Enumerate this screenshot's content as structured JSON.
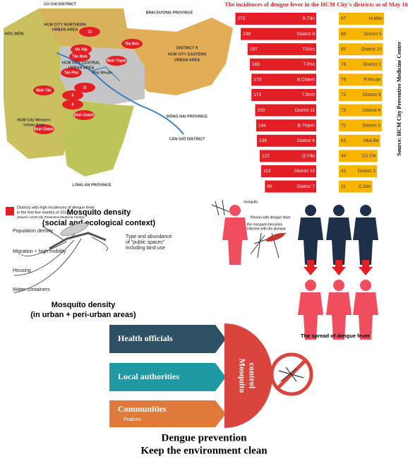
{
  "chart_data": [
    {
      "type": "bar",
      "title": "The incidences of dengue fever in the HCM City's districts as of May 16",
      "source": "Source: HCM City Preventive Medicine Centre",
      "categories": [
        "B.Tân",
        "District 8",
        "T.Đức",
        "T.Phú",
        "B.Chánh",
        "T.Bình",
        "District 11",
        "B.Thạnh",
        "District 6",
        "Q.Vấp",
        "District 12",
        "District 7"
      ],
      "values": [
        272,
        239,
        197,
        183,
        173,
        173,
        150,
        144,
        139,
        122,
        113,
        90
      ],
      "color": "#e31e24"
    },
    {
      "type": "bar",
      "categories": [
        "H.Môn",
        "District 5",
        "District 10",
        "District 1",
        "P.Nhuận",
        "District 9",
        "District 4",
        "District 3",
        "Nhà Bè",
        "Củ Chi",
        "District 2",
        "C.Giờ"
      ],
      "values": [
        87,
        80,
        80,
        76,
        76,
        75,
        73,
        72,
        62,
        44,
        41,
        11
      ],
      "color": "#f7b500"
    }
  ],
  "map": {
    "labels": [
      "CỦ CHI DISTRICT",
      "BÌNH DƯƠNG PROVINCE",
      "HÓC MÔN",
      "HCM CITY NORTHERN",
      "URBAN AREA",
      "12",
      "Gò Vấp",
      "Tân Bình",
      "Tân Phú",
      "HCM CITY CENTRAL",
      "URBAN AREA",
      "Phú Nhuận",
      "Thủ Đức",
      "Bình Thạnh",
      "DISTRICT 9",
      "HCM CITY EASTERN",
      "URBAN AREA",
      "Bình Tân",
      "11",
      "6",
      "8",
      "HCM City Western",
      "Urban Area",
      "Bình Chánh",
      "Bình Chánh",
      "ĐỒNG NAI PROVINCE",
      "CẦN GIỜ DISTRICT",
      "LONG AN PROVINCE"
    ],
    "legend": [
      "Districts with high incidences of dengue fever",
      "in the first five months of 2014.",
      "(Source: HCM City Preventive Medicine Centre)"
    ]
  },
  "density": {
    "title": "Mosquito density",
    "subtitle": "(social and ecological context)",
    "factors": [
      "Population density",
      "Migration + high mobility",
      "Housing",
      "Water containers"
    ],
    "spaces": [
      "Type and abundance",
      "of \"public spaces\"",
      "including land use"
    ],
    "bottom_title": "Mosquito density",
    "bottom_subtitle": "(in urban + peri-urban areas)"
  },
  "spread": {
    "mosquito": "mosquito",
    "person": "Person with dengue fever",
    "infected": [
      "the mosquito becomes",
      "infected with the disease"
    ],
    "caption": "The spread of dengue fever"
  },
  "prevention": {
    "groups": [
      "Health officials",
      "Local authorities",
      "Communities"
    ],
    "practices": "Pratices",
    "control": [
      "Mosquito",
      "control"
    ],
    "title": "Dengue prevention",
    "subtitle": "Keep the environment clean"
  }
}
